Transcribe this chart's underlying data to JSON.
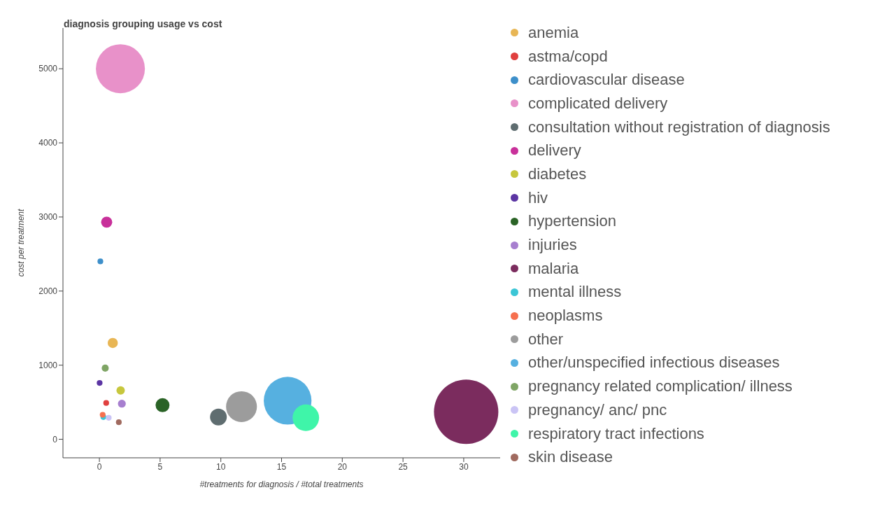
{
  "chart_data": {
    "type": "bubble",
    "title": "diagnosis grouping usage vs cost",
    "xlabel": "#treatments for diagnosis / #total treatments",
    "ylabel": "cost per treatment",
    "xlim": [
      -3,
      33
    ],
    "ylim": [
      -250,
      5550
    ],
    "xticks": [
      0,
      5,
      10,
      15,
      20,
      25,
      30
    ],
    "yticks": [
      0,
      1000,
      2000,
      3000,
      4000,
      5000
    ],
    "grid": false,
    "legend": "right",
    "marker": "circle",
    "series": [
      {
        "name": "anemia",
        "color": "#e8b655",
        "x": [
          1.1
        ],
        "values": [
          1300
        ],
        "sizes": [
          0.025
        ]
      },
      {
        "name": "astma/copd",
        "color": "#e0403f",
        "x": [
          0.56
        ],
        "values": [
          490
        ],
        "sizes": [
          0.008
        ]
      },
      {
        "name": "cardiovascular disease",
        "color": "#3d8fca",
        "x": [
          0.08
        ],
        "values": [
          2400
        ],
        "sizes": [
          0.008
        ]
      },
      {
        "name": "complicated delivery",
        "color": "#e891c9",
        "x": [
          1.73
        ],
        "values": [
          5000
        ],
        "sizes": [
          0.58
        ]
      },
      {
        "name": "consultation without registration of diagnosis",
        "color": "#5f6d70",
        "x": [
          9.8
        ],
        "values": [
          300
        ],
        "sizes": [
          0.068
        ]
      },
      {
        "name": "delivery",
        "color": "#c8309a",
        "x": [
          0.6
        ],
        "values": [
          2930
        ],
        "sizes": [
          0.03
        ]
      },
      {
        "name": "diabetes",
        "color": "#c7c73d",
        "x": [
          1.75
        ],
        "values": [
          660
        ],
        "sizes": [
          0.017
        ]
      },
      {
        "name": "hiv",
        "color": "#5b35a3",
        "x": [
          0.02
        ],
        "values": [
          760
        ],
        "sizes": [
          0.008
        ]
      },
      {
        "name": "hypertension",
        "color": "#2a6326",
        "x": [
          5.2
        ],
        "values": [
          460
        ],
        "sizes": [
          0.047
        ]
      },
      {
        "name": "injuries",
        "color": "#a77fcf",
        "x": [
          1.85
        ],
        "values": [
          480
        ],
        "sizes": [
          0.015
        ]
      },
      {
        "name": "malaria",
        "color": "#7b2c5e",
        "x": [
          30.2
        ],
        "values": [
          370
        ],
        "sizes": [
          1
        ]
      },
      {
        "name": "mental illness",
        "color": "#3bc6d6",
        "x": [
          0.33
        ],
        "values": [
          300
        ],
        "sizes": [
          0.008
        ]
      },
      {
        "name": "neoplasms",
        "color": "#f6704f",
        "x": [
          0.27
        ],
        "values": [
          330
        ],
        "sizes": [
          0.008
        ]
      },
      {
        "name": "other",
        "color": "#9c9c9c",
        "x": [
          11.7
        ],
        "values": [
          440
        ],
        "sizes": [
          0.23
        ]
      },
      {
        "name": "other/unspecified infectious diseases",
        "color": "#56b0e0",
        "x": [
          15.5
        ],
        "values": [
          520
        ],
        "sizes": [
          0.55
        ]
      },
      {
        "name": "pregnancy related complication/ illness",
        "color": "#7fa565",
        "x": [
          0.48
        ],
        "values": [
          960
        ],
        "sizes": [
          0.012
        ]
      },
      {
        "name": "pregnancy/ anc/ pnc",
        "color": "#cac4f5",
        "x": [
          0.77
        ],
        "values": [
          290
        ],
        "sizes": [
          0.008
        ]
      },
      {
        "name": "respiratory tract infections",
        "color": "#3ff5a9",
        "x": [
          17.0
        ],
        "values": [
          290
        ],
        "sizes": [
          0.17
        ]
      },
      {
        "name": "skin disease",
        "color": "#a06a5f",
        "x": [
          1.6
        ],
        "values": [
          230
        ],
        "sizes": [
          0.008
        ]
      }
    ]
  }
}
